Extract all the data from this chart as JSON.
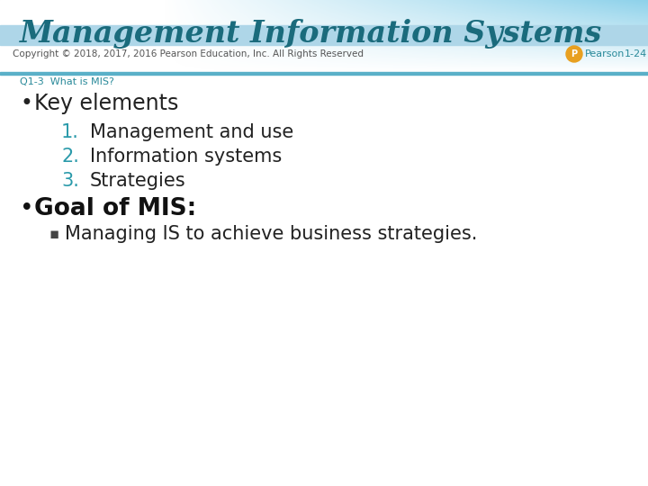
{
  "title": "Management Information Systems",
  "title_color": "#1a6b7c",
  "subtitle": "Q1-3  What is MIS?",
  "subtitle_color": "#2a8a9a",
  "bullet1_dot": "•",
  "bullet1_text": "Key elements",
  "bullet1_color": "#222222",
  "items_text": [
    "Management and use",
    "Information systems",
    "Strategies"
  ],
  "items_color": "#222222",
  "items_number_color": "#2a9aaa",
  "bullet2_dot": "•",
  "bullet2_text": "Goal of MIS:",
  "bullet2_color": "#111111",
  "sub_bullet_sym": "▪",
  "sub_bullet_text": "Managing IS to achieve business strategies.",
  "sub_bullet_color": "#222222",
  "footer": "Copyright © 2018, 2017, 2016 Pearson Education, Inc. All Rights Reserved",
  "footer_color": "#555555",
  "footer_right1": "Pearson",
  "footer_right2": "1-24",
  "footer_right_color": "#2a8a9a",
  "bg_color": "#ffffff",
  "footer_bar_color": "#aed6e8",
  "header_base_color": "#e8f4f8",
  "thin_line_color": "#5ab0c8",
  "pearson_circle_color": "#e8a020"
}
